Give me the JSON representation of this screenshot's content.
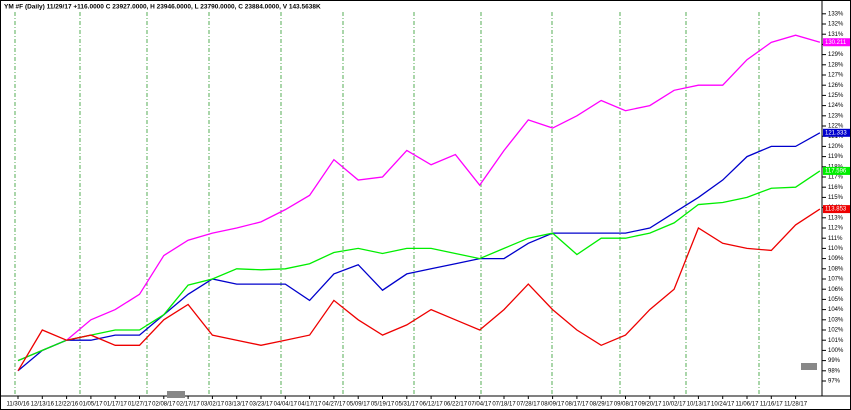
{
  "chart_data": {
    "type": "line",
    "title": "YM #F (Daily) 11/29/17 +116.0000 C 23927.0000, H 23946.0000, L 23790.0000, C 23884.0000, V 143.5638K",
    "categories": [
      "11/30/16",
      "12/13/16",
      "12/22/16",
      "01/05/17",
      "01/17/17",
      "01/27/17",
      "02/08/17",
      "02/17/17",
      "03/02/17",
      "03/13/17",
      "03/23/17",
      "04/04/17",
      "04/17/17",
      "04/27/17",
      "05/09/17",
      "05/19/17",
      "05/31/17",
      "06/12/17",
      "06/22/17",
      "07/04/17",
      "07/18/17",
      "07/28/17",
      "08/09/17",
      "08/17/17",
      "08/29/17",
      "09/08/17",
      "09/20/17",
      "10/02/17",
      "10/13/17",
      "10/24/17",
      "11/06/17",
      "11/16/17",
      "11/28/17",
      null
    ],
    "series": [
      {
        "color": "#ff00ff",
        "last_label": "130.211",
        "values": [
          99,
          100,
          101,
          103,
          104,
          105.5,
          109.3,
          110.8,
          111.5,
          112,
          112.6,
          113.8,
          115.2,
          118.7,
          116.7,
          117,
          119.6,
          118.2,
          119.2,
          116.2,
          119.6,
          122.6,
          121.8,
          123,
          124.5,
          123.5,
          124,
          125.5,
          126,
          126,
          128.5,
          130.2,
          130.9,
          130.211
        ]
      },
      {
        "color": "#0000cc",
        "last_label": "121.333",
        "values": [
          98,
          100,
          101,
          101,
          101.5,
          101.5,
          103.5,
          105.5,
          107,
          106.5,
          106.5,
          106.5,
          104.9,
          107.5,
          108.4,
          105.9,
          107.5,
          108,
          108.5,
          109,
          109,
          110.5,
          111.5,
          111.5,
          111.5,
          111.5,
          112,
          113.5,
          115,
          116.7,
          119,
          120,
          120,
          121.333
        ]
      },
      {
        "color": "#00ee00",
        "last_label": "117.596",
        "values": [
          99,
          100,
          101,
          101.5,
          102,
          102,
          103.5,
          106.4,
          107,
          108,
          107.9,
          108,
          108.5,
          109.6,
          110,
          109.5,
          110,
          110,
          109.5,
          109,
          110,
          111,
          111.5,
          109.4,
          111,
          111,
          111.5,
          112.5,
          114.3,
          114.5,
          115,
          115.9,
          116,
          117.596
        ]
      },
      {
        "color": "#ee0000",
        "last_label": "113.853",
        "values": [
          98,
          102,
          101,
          101.5,
          100.5,
          100.5,
          103,
          104.5,
          101.5,
          101,
          100.5,
          101,
          101.5,
          104.9,
          103,
          101.5,
          102.5,
          104,
          103,
          102,
          104,
          106.5,
          104,
          102,
          100.5,
          101.5,
          104,
          106,
          112,
          110.5,
          110,
          109.8,
          112.3,
          113.853
        ]
      }
    ],
    "ylim": [
      97,
      133.5
    ],
    "yticks": [
      {
        "value": 97,
        "label": "97%"
      },
      {
        "value": 98,
        "label": "98%"
      },
      {
        "value": 99,
        "label": "99%"
      },
      {
        "value": 100,
        "label": "100%"
      },
      {
        "value": 101,
        "label": "101%"
      },
      {
        "value": 102,
        "label": "102%"
      },
      {
        "value": 103,
        "label": "103%"
      },
      {
        "value": 104,
        "label": "104%"
      },
      {
        "value": 105,
        "label": "105%"
      },
      {
        "value": 106,
        "label": "106%"
      },
      {
        "value": 107,
        "label": "107%"
      },
      {
        "value": 108,
        "label": "108%"
      },
      {
        "value": 109,
        "label": "109%"
      },
      {
        "value": 110,
        "label": "110%"
      },
      {
        "value": 111,
        "label": "111%"
      },
      {
        "value": 112,
        "label": "112%"
      },
      {
        "value": 113,
        "label": "113%"
      },
      {
        "value": 114,
        "label": "114%"
      },
      {
        "value": 115,
        "label": "115%"
      },
      {
        "value": 116,
        "label": "116%"
      },
      {
        "value": 117,
        "label": "117%"
      },
      {
        "value": 118,
        "label": "118%"
      },
      {
        "value": 119,
        "label": "119%"
      },
      {
        "value": 120,
        "label": "120%"
      },
      {
        "value": 121,
        "label": "121%"
      },
      {
        "value": 122,
        "label": "122%"
      },
      {
        "value": 123,
        "label": "123%"
      },
      {
        "value": 124,
        "label": "124%"
      },
      {
        "value": 125,
        "label": "125%"
      },
      {
        "value": 126,
        "label": "126%"
      },
      {
        "value": 127,
        "label": "127%"
      },
      {
        "value": 128,
        "label": "128%"
      },
      {
        "value": 129,
        "label": "129%"
      },
      {
        "value": 130,
        "label": "130%"
      },
      {
        "value": 131,
        "label": "131%"
      },
      {
        "value": 132,
        "label": "132%"
      },
      {
        "value": 133,
        "label": "133%"
      }
    ]
  }
}
